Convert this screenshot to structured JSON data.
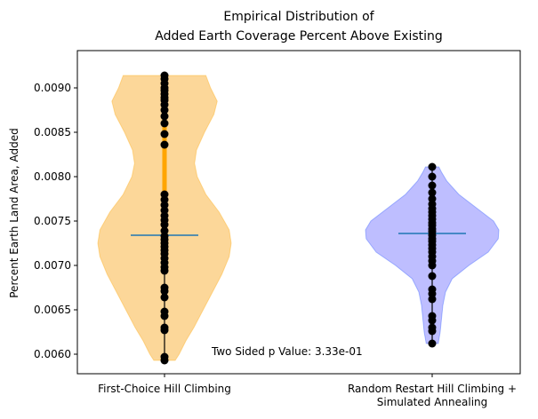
{
  "chart_data": {
    "type": "violin",
    "title_lines": [
      "Empirical Distribution of",
      "Added Earth Coverage Percent Above Existing"
    ],
    "xlabel": "",
    "ylabel": "Percent Earth Land Area, Added",
    "ylim": [
      0.00578,
      0.00942
    ],
    "yticks": [
      0.006,
      0.0065,
      0.007,
      0.0075,
      0.008,
      0.0085,
      0.009
    ],
    "ytick_labels": [
      "0.0060",
      "0.0065",
      "0.0070",
      "0.0075",
      "0.0080",
      "0.0085",
      "0.0090"
    ],
    "categories": [
      {
        "lines": [
          "First-Choice Hill Climbing"
        ]
      },
      {
        "lines": [
          "Random Restart Hill Climbing +",
          "Simulated Annealing"
        ]
      }
    ],
    "annotation": "Two Sided p Value: 3.33e-01",
    "series": [
      {
        "color": "#ffa500",
        "fill_color": "#fcd087",
        "median_bar_color": "#ffa500",
        "mean": 0.00734,
        "min": 0.00593,
        "max": 0.00914,
        "iqr": [
          0.00705,
          0.009
        ],
        "density_profile": [
          [
            0.00593,
            0.16
          ],
          [
            0.006,
            0.22
          ],
          [
            0.00615,
            0.32
          ],
          [
            0.0063,
            0.44
          ],
          [
            0.0065,
            0.58
          ],
          [
            0.0067,
            0.72
          ],
          [
            0.0069,
            0.86
          ],
          [
            0.0071,
            0.97
          ],
          [
            0.00725,
            1.0
          ],
          [
            0.0074,
            0.97
          ],
          [
            0.0076,
            0.82
          ],
          [
            0.0078,
            0.62
          ],
          [
            0.008,
            0.49
          ],
          [
            0.00815,
            0.45
          ],
          [
            0.0083,
            0.48
          ],
          [
            0.0085,
            0.6
          ],
          [
            0.0087,
            0.74
          ],
          [
            0.00885,
            0.79
          ],
          [
            0.009,
            0.69
          ],
          [
            0.00914,
            0.62
          ]
        ],
        "values": [
          0.00914,
          0.0091,
          0.00905,
          0.009,
          0.00897,
          0.00893,
          0.00889,
          0.00886,
          0.00881,
          0.00875,
          0.00868,
          0.0086,
          0.00848,
          0.00836,
          0.0078,
          0.00774,
          0.00768,
          0.00762,
          0.00756,
          0.00751,
          0.00746,
          0.00739,
          0.00733,
          0.00729,
          0.00725,
          0.00721,
          0.00717,
          0.00713,
          0.00708,
          0.00703,
          0.00698,
          0.00694,
          0.00675,
          0.00671,
          0.00664,
          0.00648,
          0.00643,
          0.0063,
          0.00627,
          0.00597,
          0.00593
        ]
      },
      {
        "color": "#1f4fff",
        "fill_color": "#b3b3ff",
        "median_bar_color": "#000000",
        "mean": 0.00736,
        "min": 0.00612,
        "max": 0.00811,
        "iqr": [
          0.007,
          0.0076
        ],
        "density_profile": [
          [
            0.00612,
            0.09
          ],
          [
            0.00625,
            0.12
          ],
          [
            0.0064,
            0.14
          ],
          [
            0.00655,
            0.16
          ],
          [
            0.0067,
            0.2
          ],
          [
            0.00685,
            0.3
          ],
          [
            0.007,
            0.55
          ],
          [
            0.00715,
            0.84
          ],
          [
            0.0073,
            0.99
          ],
          [
            0.0074,
            1.0
          ],
          [
            0.0075,
            0.92
          ],
          [
            0.00765,
            0.66
          ],
          [
            0.0078,
            0.4
          ],
          [
            0.00795,
            0.22
          ],
          [
            0.00805,
            0.14
          ],
          [
            0.00811,
            0.1
          ]
        ],
        "values": [
          0.00811,
          0.008,
          0.0079,
          0.00782,
          0.00775,
          0.00769,
          0.00764,
          0.0076,
          0.00756,
          0.00752,
          0.00748,
          0.00745,
          0.00741,
          0.00738,
          0.00734,
          0.0073,
          0.00727,
          0.00723,
          0.00719,
          0.00715,
          0.0071,
          0.00705,
          0.007,
          0.00688,
          0.00673,
          0.00668,
          0.00662,
          0.00643,
          0.00638,
          0.0063,
          0.00626,
          0.00612
        ]
      }
    ]
  }
}
